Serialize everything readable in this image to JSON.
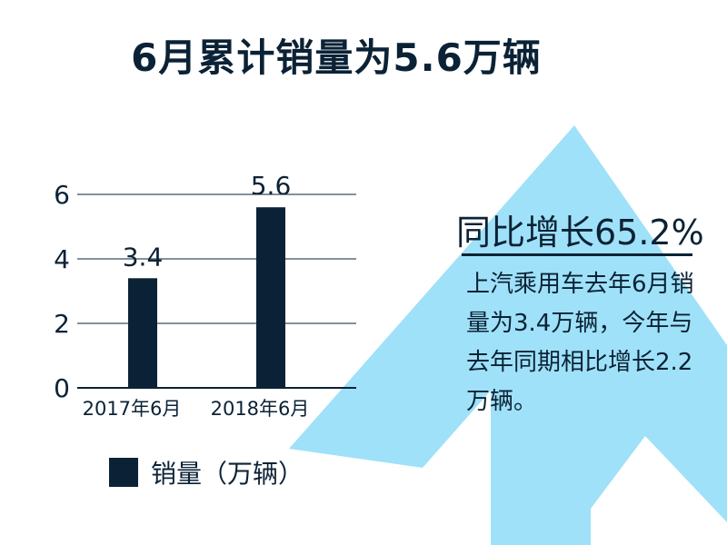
{
  "title": "6月累计销量为5.6万辆",
  "colors": {
    "bar": "#0b2236",
    "arrow": "#9fe1f8",
    "text": "#0b2236",
    "grid": "#0b2236"
  },
  "chart_data": {
    "type": "bar",
    "categories": [
      "2017年6月",
      "2018年6月"
    ],
    "values": [
      3.4,
      5.6
    ],
    "data_labels": [
      "3.4",
      "5.6"
    ],
    "y_ticks": [
      "0",
      "2",
      "4",
      "6"
    ],
    "ylim": [
      0,
      6
    ],
    "grid": true,
    "legend": {
      "label": "销量（万辆）",
      "placement": "bottom-left"
    }
  },
  "callout": {
    "heading": "同比增长65.2%",
    "body": "上汽乘用车去年6月销量为3.4万辆，今年与去年同期相比增长2.2万辆。"
  },
  "decoration": {
    "arrow_icon": "up-arrow-icon"
  }
}
